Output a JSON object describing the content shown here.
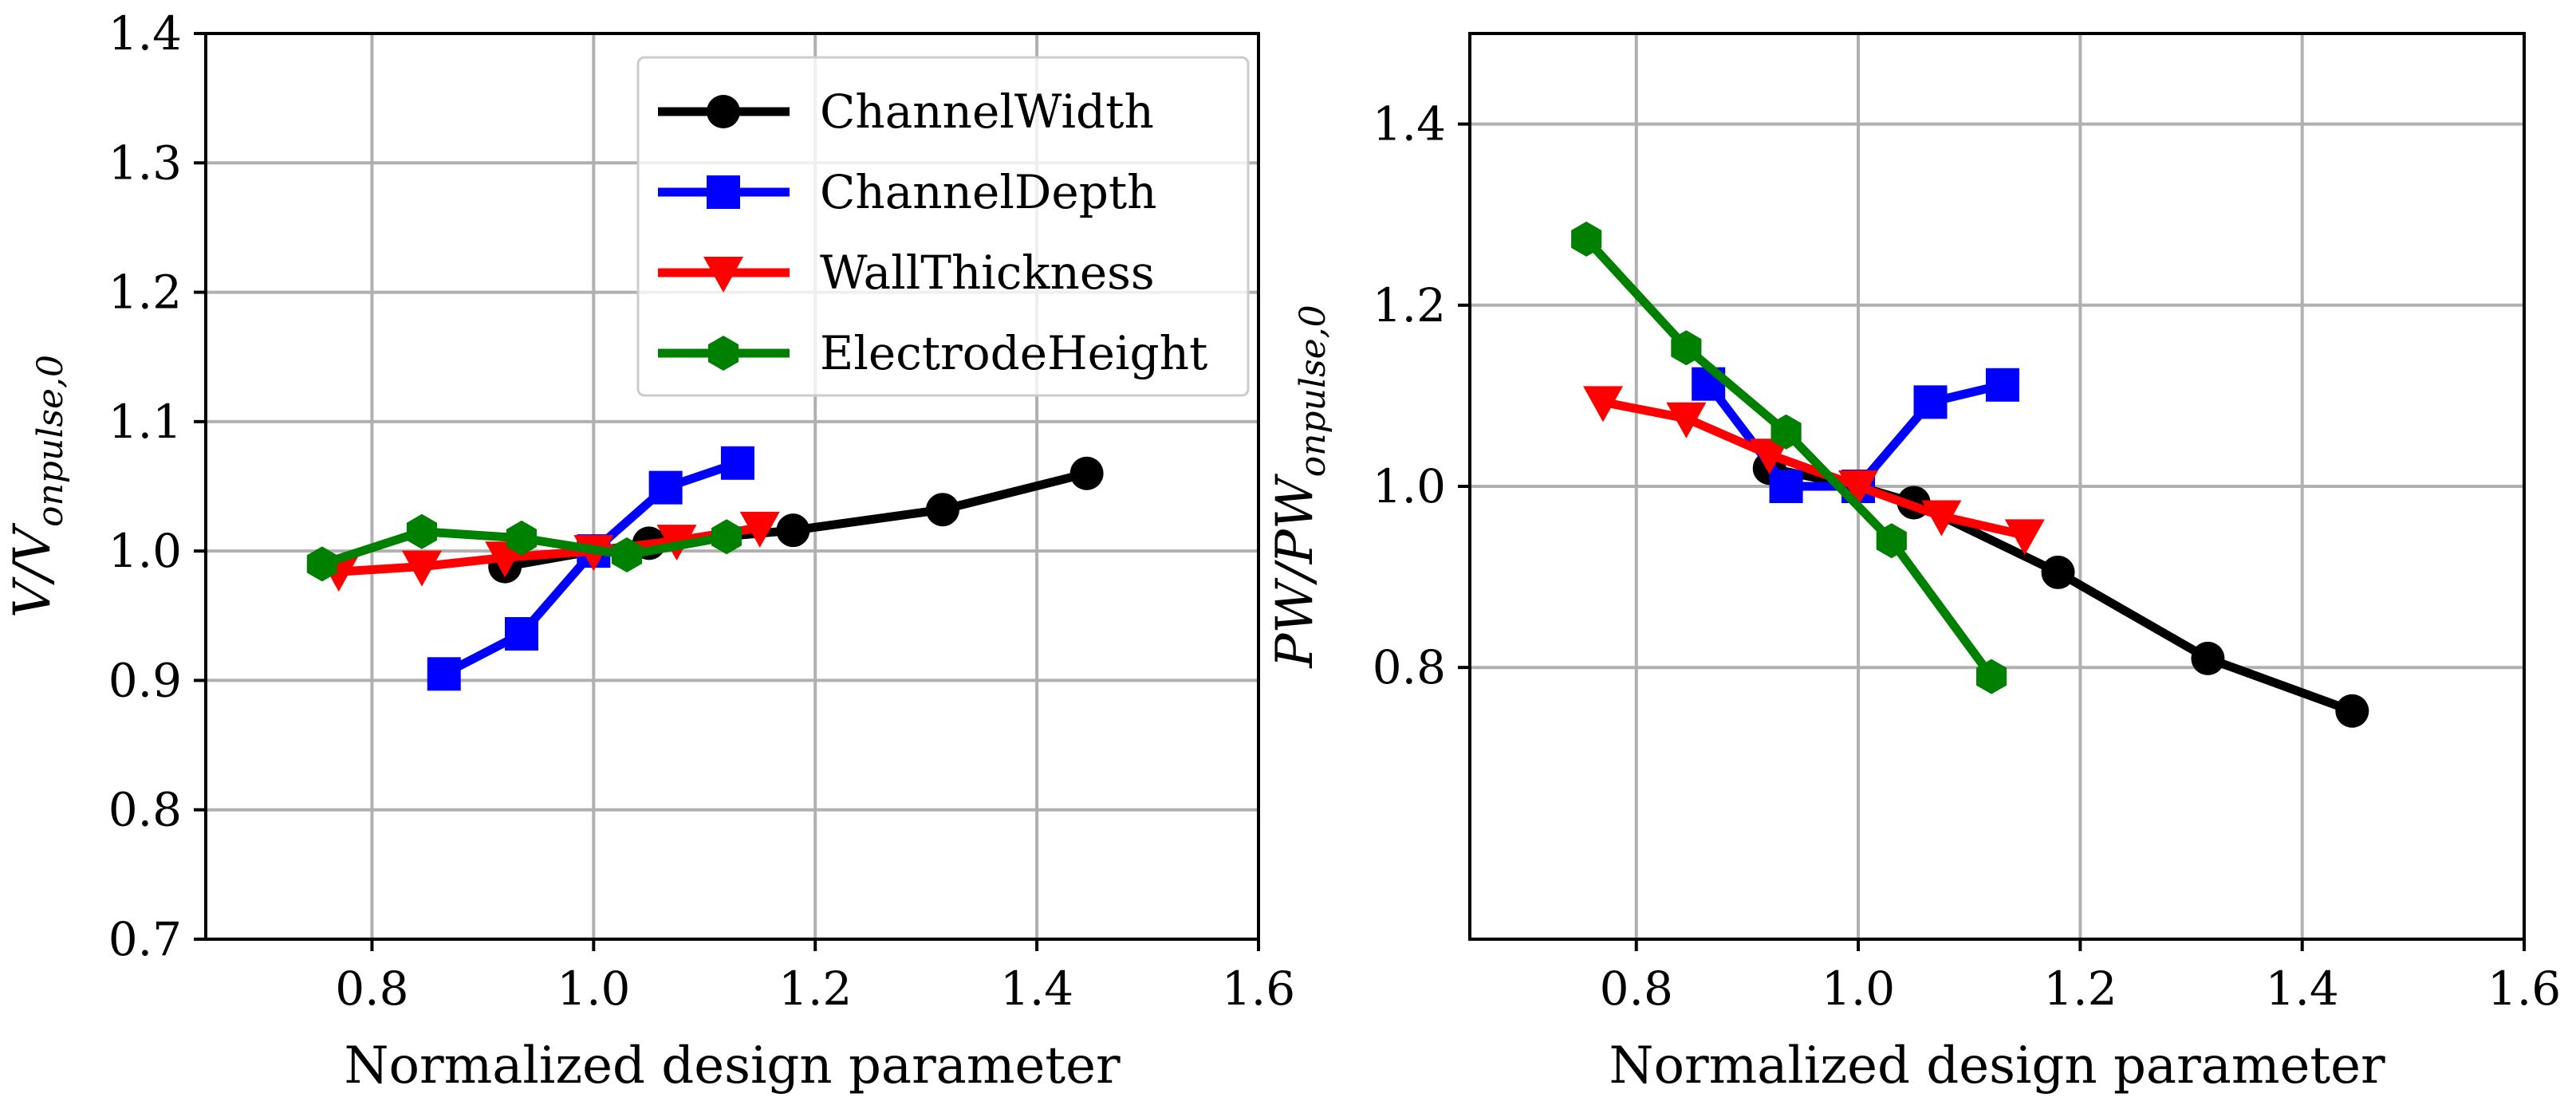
{
  "chart_data": [
    {
      "type": "line",
      "xlabel": "Normalized design parameter",
      "ylabel": {
        "base": "V/V",
        "sub": "onpulse,0"
      },
      "xlim": [
        0.65,
        1.6
      ],
      "ylim": [
        0.7,
        1.4
      ],
      "xticks": [
        "0.8",
        "1.0",
        "1.2",
        "1.4",
        "1.6"
      ],
      "yticks": [
        "0.7",
        "0.8",
        "0.9",
        "1.0",
        "1.1",
        "1.2",
        "1.3",
        "1.4"
      ],
      "grid": true,
      "legend": {
        "position": "top-right"
      },
      "series": [
        {
          "name": "ChannelWidth",
          "color": "#000000",
          "marker": "circle",
          "x": [
            0.92,
            1.0,
            1.05,
            1.18,
            1.315,
            1.445
          ],
          "y": [
            0.988,
            1.0,
            1.006,
            1.016,
            1.032,
            1.06
          ]
        },
        {
          "name": "ChannelDepth",
          "color": "#0000ff",
          "marker": "square",
          "x": [
            0.865,
            0.935,
            1.0,
            1.065,
            1.13
          ],
          "y": [
            0.905,
            0.936,
            1.0,
            1.049,
            1.068
          ]
        },
        {
          "name": "WallThickness",
          "color": "#ff0000",
          "marker": "triangle-down",
          "x": [
            0.77,
            0.845,
            0.92,
            1.0,
            1.075,
            1.15
          ],
          "y": [
            0.984,
            0.988,
            0.995,
            1.0,
            1.008,
            1.018
          ]
        },
        {
          "name": "ElectrodeHeight",
          "color": "#008000",
          "marker": "hexagon",
          "x": [
            0.755,
            0.845,
            0.935,
            1.03,
            1.12
          ],
          "y": [
            0.99,
            1.015,
            1.01,
            0.997,
            1.011
          ]
        }
      ]
    },
    {
      "type": "line",
      "xlabel": "Normalized design parameter",
      "ylabel": {
        "base": "PW/PW",
        "sub": "onpulse,0"
      },
      "xlim": [
        0.65,
        1.6
      ],
      "ylim": [
        0.5,
        1.5
      ],
      "xticks": [
        "0.8",
        "1.0",
        "1.2",
        "1.4",
        "1.6"
      ],
      "yticks": [
        "0.8",
        "1.0",
        "1.2",
        "1.4"
      ],
      "grid": true,
      "series": [
        {
          "name": "ChannelWidth",
          "color": "#000000",
          "marker": "circle",
          "x": [
            0.92,
            1.0,
            1.05,
            1.18,
            1.315,
            1.445
          ],
          "y": [
            1.02,
            1.0,
            0.982,
            0.905,
            0.81,
            0.752
          ]
        },
        {
          "name": "ChannelDepth",
          "color": "#0000ff",
          "marker": "square",
          "x": [
            0.865,
            0.935,
            1.0,
            1.065,
            1.13
          ],
          "y": [
            1.113,
            1.0,
            1.0,
            1.093,
            1.112
          ]
        },
        {
          "name": "WallThickness",
          "color": "#ff0000",
          "marker": "triangle-down",
          "x": [
            0.77,
            0.845,
            0.92,
            1.0,
            1.075,
            1.15
          ],
          "y": [
            1.093,
            1.075,
            1.035,
            1.0,
            0.967,
            0.946
          ]
        },
        {
          "name": "ElectrodeHeight",
          "color": "#008000",
          "marker": "hexagon",
          "x": [
            0.755,
            0.845,
            0.935,
            1.03,
            1.12
          ],
          "y": [
            1.273,
            1.153,
            1.06,
            0.94,
            0.79
          ]
        }
      ]
    }
  ]
}
